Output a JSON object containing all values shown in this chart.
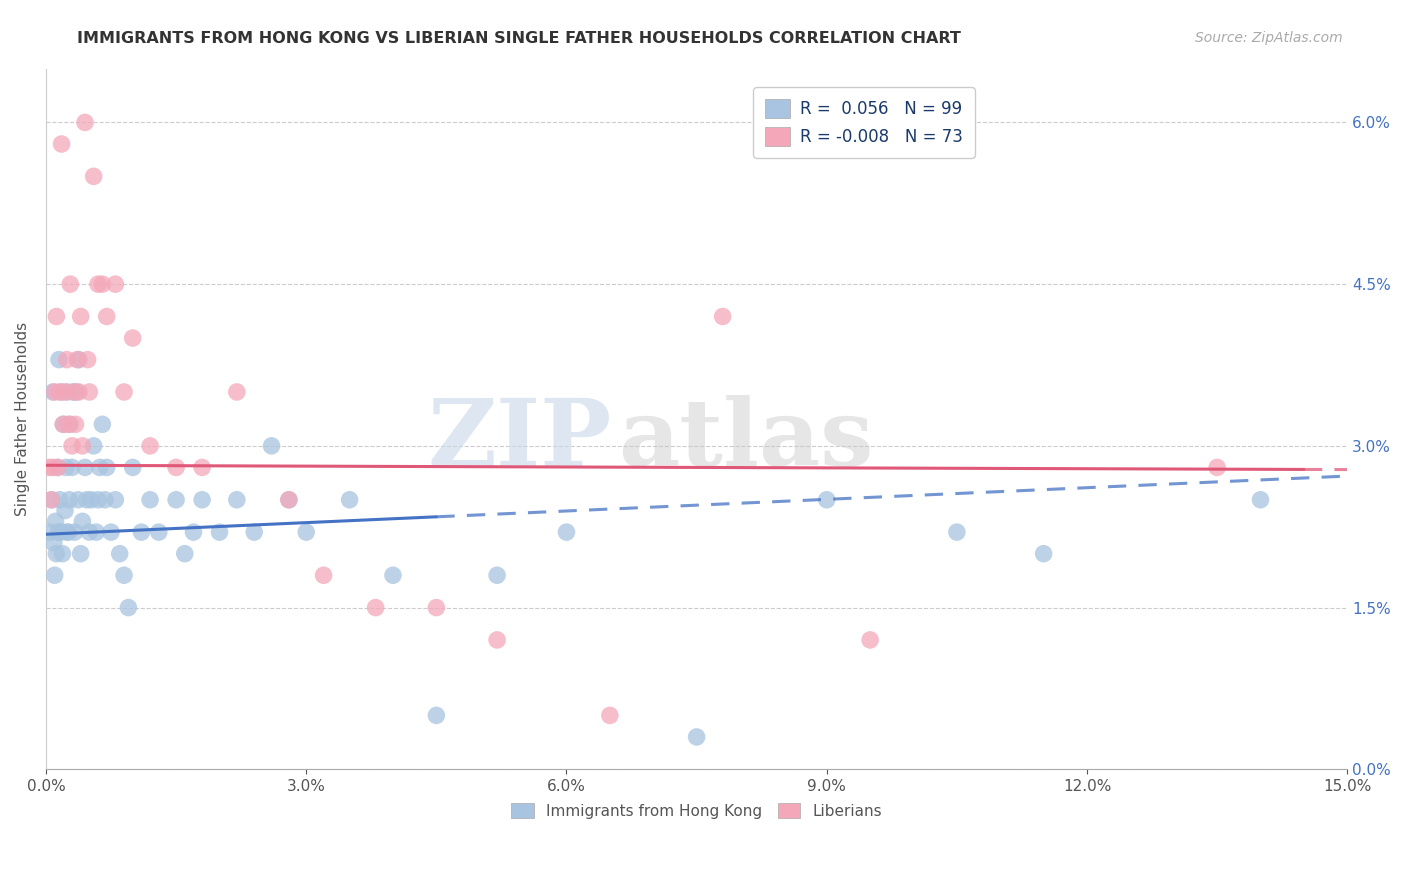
{
  "title": "IMMIGRANTS FROM HONG KONG VS LIBERIAN SINGLE FATHER HOUSEHOLDS CORRELATION CHART",
  "source": "Source: ZipAtlas.com",
  "xlabel_vals": [
    0.0,
    3.0,
    6.0,
    9.0,
    12.0,
    15.0
  ],
  "ylabel_vals": [
    0.0,
    1.5,
    3.0,
    4.5,
    6.0
  ],
  "xmin": 0.0,
  "xmax": 15.0,
  "ymin": 0.0,
  "ymax": 6.5,
  "hk_color": "#a8c4e0",
  "lib_color": "#f4a7b9",
  "hk_line_color": "#4472c4",
  "lib_line_color": "#e05878",
  "hk_R": 0.056,
  "hk_N": 99,
  "lib_R": -0.008,
  "lib_N": 73,
  "legend_label_hk": "Immigrants from Hong Kong",
  "legend_label_lib": "Liberians",
  "ylabel": "Single Father Households",
  "watermark_zip": "ZIP",
  "watermark_atlas": "atlas",
  "hk_line_x0": 0.0,
  "hk_line_y0": 2.18,
  "hk_line_x1": 15.0,
  "hk_line_y1": 2.72,
  "hk_solid_x_end": 4.5,
  "lib_line_x0": 0.0,
  "lib_line_y0": 2.82,
  "lib_line_x1": 15.0,
  "lib_line_y1": 2.78,
  "lib_solid_x_end": 14.5,
  "hk_scatter_x": [
    0.05,
    0.07,
    0.08,
    0.09,
    0.1,
    0.11,
    0.12,
    0.13,
    0.14,
    0.15,
    0.16,
    0.17,
    0.18,
    0.19,
    0.2,
    0.22,
    0.23,
    0.24,
    0.25,
    0.26,
    0.27,
    0.28,
    0.3,
    0.32,
    0.33,
    0.35,
    0.37,
    0.38,
    0.4,
    0.42,
    0.45,
    0.47,
    0.5,
    0.52,
    0.55,
    0.58,
    0.6,
    0.62,
    0.65,
    0.68,
    0.7,
    0.75,
    0.8,
    0.85,
    0.9,
    0.95,
    1.0,
    1.1,
    1.2,
    1.3,
    1.5,
    1.6,
    1.7,
    1.8,
    2.0,
    2.2,
    2.4,
    2.6,
    2.8,
    3.0,
    3.5,
    4.0,
    4.5,
    5.2,
    6.0,
    7.5,
    9.0,
    10.5,
    11.5,
    14.0
  ],
  "hk_scatter_y": [
    2.2,
    2.5,
    3.5,
    2.1,
    1.8,
    2.3,
    2.0,
    2.8,
    2.2,
    3.8,
    2.5,
    2.2,
    3.5,
    2.0,
    3.2,
    2.4,
    2.8,
    2.2,
    3.5,
    2.2,
    2.5,
    3.2,
    2.8,
    3.5,
    2.2,
    3.5,
    2.5,
    3.8,
    2.0,
    2.3,
    2.8,
    2.5,
    2.2,
    2.5,
    3.0,
    2.2,
    2.5,
    2.8,
    3.2,
    2.5,
    2.8,
    2.2,
    2.5,
    2.0,
    1.8,
    1.5,
    2.8,
    2.2,
    2.5,
    2.2,
    2.5,
    2.0,
    2.2,
    2.5,
    2.2,
    2.5,
    2.2,
    3.0,
    2.5,
    2.2,
    2.5,
    1.8,
    0.5,
    1.8,
    2.2,
    0.3,
    2.5,
    2.2,
    2.0,
    2.5
  ],
  "lib_scatter_x": [
    0.04,
    0.06,
    0.08,
    0.1,
    0.12,
    0.14,
    0.16,
    0.18,
    0.2,
    0.22,
    0.24,
    0.26,
    0.28,
    0.3,
    0.32,
    0.34,
    0.36,
    0.38,
    0.4,
    0.42,
    0.45,
    0.48,
    0.5,
    0.55,
    0.6,
    0.65,
    0.7,
    0.8,
    0.9,
    1.0,
    1.2,
    1.5,
    1.8,
    2.2,
    2.8,
    3.2,
    3.8,
    4.5,
    5.2,
    6.5,
    7.8,
    9.5,
    13.5
  ],
  "lib_scatter_y": [
    2.8,
    2.5,
    2.8,
    3.5,
    4.2,
    2.8,
    3.5,
    5.8,
    3.2,
    3.5,
    3.8,
    3.2,
    4.5,
    3.0,
    3.5,
    3.2,
    3.8,
    3.5,
    4.2,
    3.0,
    6.0,
    3.8,
    3.5,
    5.5,
    4.5,
    4.5,
    4.2,
    4.5,
    3.5,
    4.0,
    3.0,
    2.8,
    2.8,
    3.5,
    2.5,
    1.8,
    1.5,
    1.5,
    1.2,
    0.5,
    4.2,
    1.2,
    2.8
  ]
}
